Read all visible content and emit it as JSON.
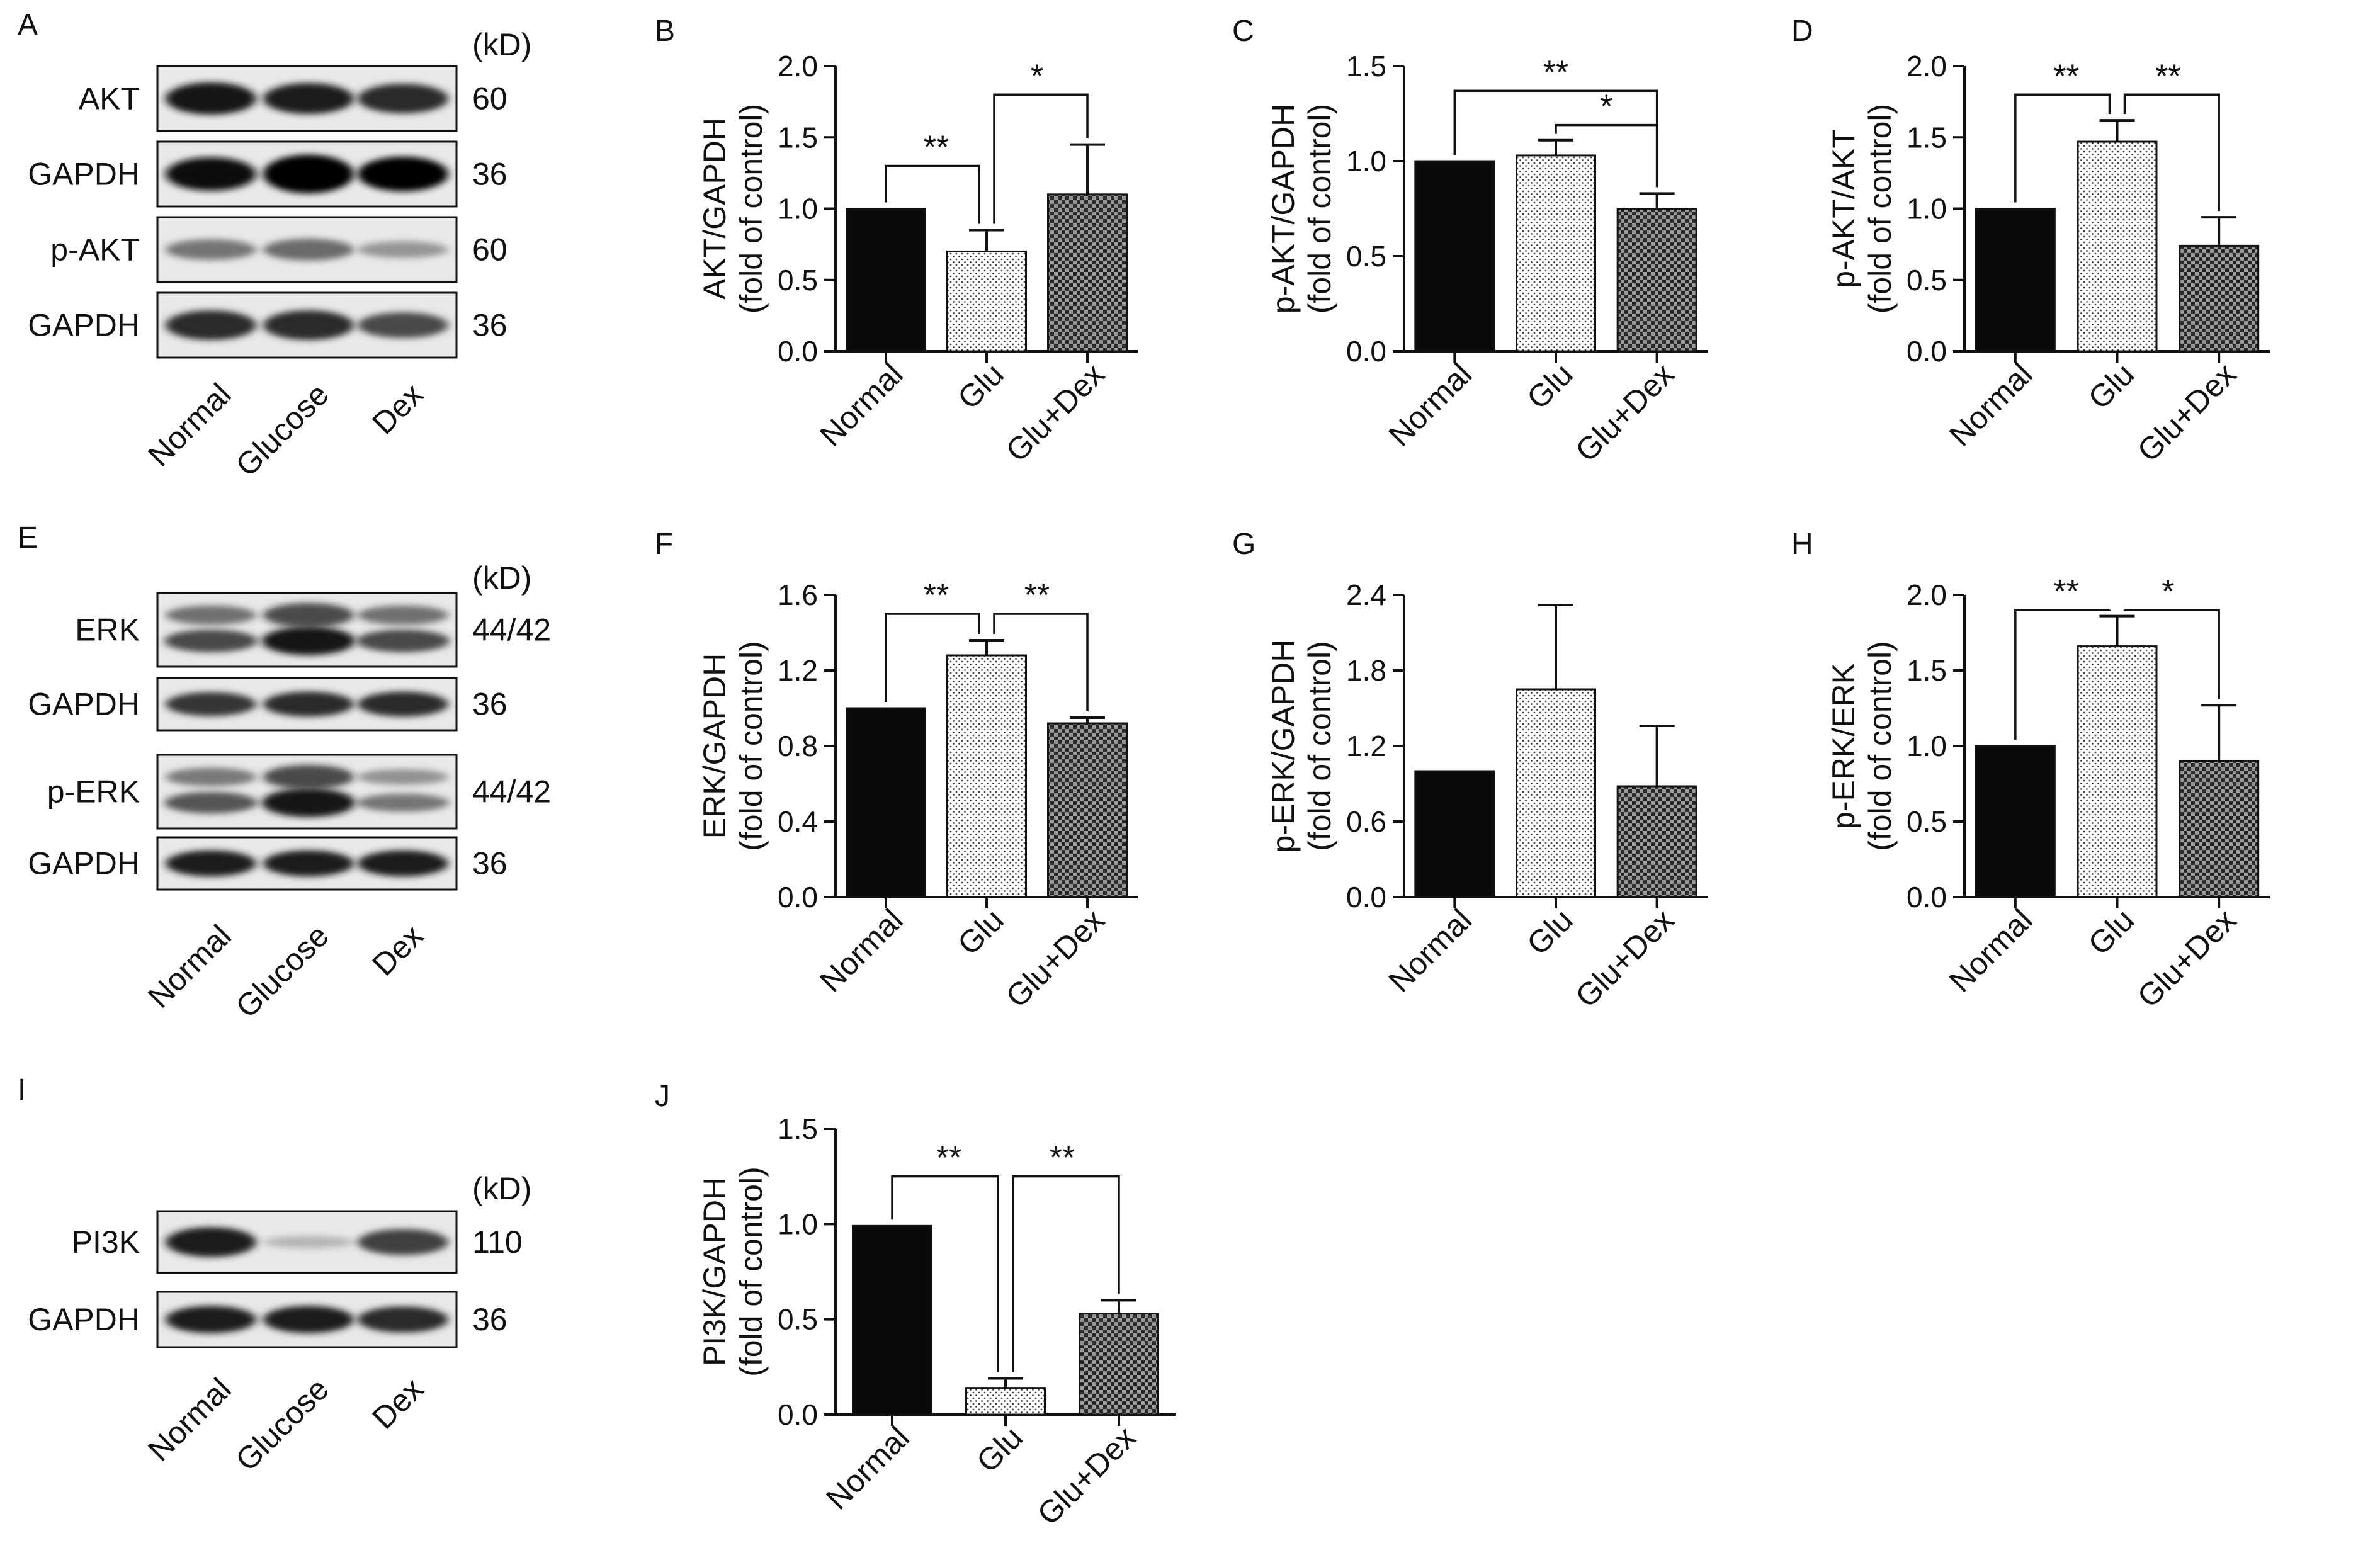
{
  "blots": [
    {
      "panel": "A",
      "unit_label": "(kD)",
      "rows": [
        {
          "label": "AKT",
          "kd": "60",
          "bands": [
            1.0,
            0.95,
            0.9
          ],
          "double": false
        },
        {
          "label": "GAPDH",
          "kd": "36",
          "bands": [
            1.05,
            1.25,
            1.1
          ],
          "double": false
        },
        {
          "label": "p-AKT",
          "kd": "60",
          "bands": [
            0.55,
            0.6,
            0.4
          ],
          "double": false
        },
        {
          "label": "GAPDH",
          "kd": "36",
          "bands": [
            0.9,
            0.9,
            0.75
          ],
          "double": false
        }
      ],
      "lanes": [
        "Normal",
        "Glucose",
        "Dex"
      ]
    },
    {
      "panel": "E",
      "unit_label": "(kD)",
      "rows": [
        {
          "label": "ERK",
          "kd": "44/42",
          "bands": [
            0.75,
            1.0,
            0.75
          ],
          "double": true
        },
        {
          "label": "GAPDH",
          "kd": "36",
          "bands": [
            0.85,
            0.9,
            0.9
          ],
          "double": false
        },
        {
          "label": "p-ERK",
          "kd": "44/42",
          "bands": [
            0.7,
            1.0,
            0.55
          ],
          "double": true
        },
        {
          "label": "GAPDH",
          "kd": "36",
          "bands": [
            0.95,
            0.95,
            0.95
          ],
          "double": false
        }
      ],
      "lanes": [
        "Normal",
        "Glucose",
        "Dex"
      ]
    },
    {
      "panel": "I",
      "unit_label": "(kD)",
      "rows": [
        {
          "label": "PI3K",
          "kd": "110",
          "bands": [
            0.95,
            0.25,
            0.8
          ],
          "double": false
        },
        {
          "label": "GAPDH",
          "kd": "36",
          "bands": [
            0.95,
            0.95,
            0.9
          ],
          "double": false
        }
      ],
      "lanes": [
        "Normal",
        "Glucose",
        "Dex"
      ]
    }
  ],
  "chart_data": [
    {
      "panel": "B",
      "type": "bar",
      "categories": [
        "Normal",
        "Glu",
        "Glu+Dex"
      ],
      "values": [
        1.0,
        0.7,
        1.1
      ],
      "errors": [
        0,
        0.15,
        0.35
      ],
      "ylabel": [
        "AKT/GAPDH",
        "(fold of control)"
      ],
      "ylim": [
        0,
        2.0
      ],
      "yticks": [
        "0.0",
        "0.5",
        "1.0",
        "1.5",
        "2.0"
      ],
      "significance": [
        {
          "from": 0,
          "to": 1,
          "label": "**",
          "level": 1.3
        },
        {
          "from": 1,
          "to": 2,
          "label": "*",
          "level": 1.8
        }
      ]
    },
    {
      "panel": "C",
      "type": "bar",
      "categories": [
        "Normal",
        "Glu",
        "Glu+Dex"
      ],
      "values": [
        1.0,
        1.03,
        0.75
      ],
      "errors": [
        0,
        0.08,
        0.08
      ],
      "ylabel": [
        "p-AKT/GAPDH",
        "(fold of control)"
      ],
      "ylim": [
        0,
        1.5
      ],
      "yticks": [
        "0.0",
        "0.5",
        "1.0",
        "1.5"
      ],
      "significance": [
        {
          "from": 0,
          "to": 2,
          "label": "**",
          "level": 1.37
        },
        {
          "from": 1,
          "to": 2,
          "label": "*",
          "level": 1.19
        }
      ]
    },
    {
      "panel": "D",
      "type": "bar",
      "categories": [
        "Normal",
        "Glu",
        "Glu+Dex"
      ],
      "values": [
        1.0,
        1.47,
        0.74
      ],
      "errors": [
        0,
        0.15,
        0.2
      ],
      "ylabel": [
        "p-AKT/AKT",
        "(fold of control)"
      ],
      "ylim": [
        0,
        2.0
      ],
      "yticks": [
        "0.0",
        "0.5",
        "1.0",
        "1.5",
        "2.0"
      ],
      "significance": [
        {
          "from": 0,
          "to": 1,
          "label": "**",
          "level": 1.8
        },
        {
          "from": 1,
          "to": 2,
          "label": "**",
          "level": 1.8
        }
      ]
    },
    {
      "panel": "F",
      "type": "bar",
      "categories": [
        "Normal",
        "Glu",
        "Glu+Dex"
      ],
      "values": [
        1.0,
        1.28,
        0.92
      ],
      "errors": [
        0,
        0.08,
        0.03
      ],
      "ylabel": [
        "ERK/GAPDH",
        "(fold of control)"
      ],
      "ylim": [
        0,
        1.6
      ],
      "yticks": [
        "0.0",
        "0.4",
        "0.8",
        "1.2",
        "1.6"
      ],
      "significance": [
        {
          "from": 0,
          "to": 1,
          "label": "**",
          "level": 1.5
        },
        {
          "from": 1,
          "to": 2,
          "label": "**",
          "level": 1.5
        }
      ]
    },
    {
      "panel": "G",
      "type": "bar",
      "categories": [
        "Normal",
        "Glu",
        "Glu+Dex"
      ],
      "values": [
        1.0,
        1.65,
        0.88
      ],
      "errors": [
        0,
        0.67,
        0.48
      ],
      "ylabel": [
        "p-ERK/GAPDH",
        "(fold of control)"
      ],
      "ylim": [
        0,
        2.4
      ],
      "yticks": [
        "0.0",
        "0.6",
        "1.2",
        "1.8",
        "2.4"
      ],
      "significance": []
    },
    {
      "panel": "H",
      "type": "bar",
      "categories": [
        "Normal",
        "Glu",
        "Glu+Dex"
      ],
      "values": [
        1.0,
        1.66,
        0.9
      ],
      "errors": [
        0,
        0.2,
        0.37
      ],
      "ylabel": [
        "p-ERK/ERK",
        "(fold of control)"
      ],
      "ylim": [
        0,
        2.0
      ],
      "yticks": [
        "0.0",
        "0.5",
        "1.0",
        "1.5",
        "2.0"
      ],
      "significance": [
        {
          "from": 0,
          "to": 1,
          "label": "**",
          "level": 1.9
        },
        {
          "from": 1,
          "to": 2,
          "label": "*",
          "level": 1.9
        }
      ]
    },
    {
      "panel": "J",
      "type": "bar",
      "categories": [
        "Normal",
        "Glu",
        "Glu+Dex"
      ],
      "values": [
        0.99,
        0.14,
        0.53
      ],
      "errors": [
        0,
        0.05,
        0.07
      ],
      "ylabel": [
        "PI3K/GAPDH",
        "(fold of control)"
      ],
      "ylim": [
        0,
        1.5
      ],
      "yticks": [
        "0.0",
        "0.5",
        "1.0",
        "1.5"
      ],
      "significance": [
        {
          "from": 0,
          "to": 1,
          "label": "**",
          "level": 1.25
        },
        {
          "from": 1,
          "to": 2,
          "label": "**",
          "level": 1.25
        }
      ]
    }
  ]
}
